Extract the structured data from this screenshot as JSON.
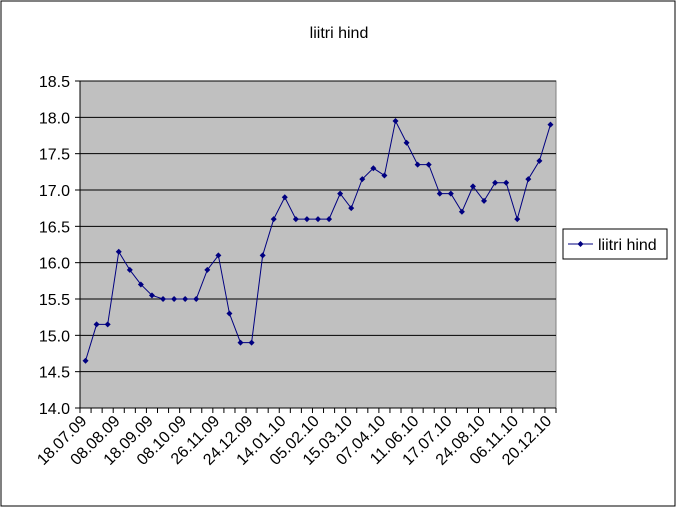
{
  "chart_data": {
    "type": "line",
    "title": "liitri hind",
    "categories": [
      "18.07.09",
      null,
      null,
      "08.08.09",
      null,
      null,
      "18.09.09",
      null,
      null,
      "08.10.09",
      null,
      null,
      "26.11.09",
      null,
      null,
      "24.12.09",
      null,
      null,
      "14.01.10",
      null,
      null,
      "05.02.10",
      null,
      null,
      "15.03.10",
      null,
      null,
      "07.04.10",
      null,
      null,
      "11.06.10",
      null,
      null,
      "17.07.10",
      null,
      null,
      "24.08.10",
      null,
      null,
      "06.11.10",
      null,
      null,
      "20.12.10"
    ],
    "series": [
      {
        "name": "liitri hind",
        "color": "#000080",
        "values": [
          14.65,
          15.15,
          15.15,
          16.15,
          15.9,
          15.7,
          15.55,
          15.5,
          15.5,
          15.5,
          15.5,
          15.9,
          16.1,
          15.3,
          14.9,
          14.9,
          16.1,
          16.6,
          16.9,
          16.6,
          16.6,
          16.6,
          16.6,
          16.95,
          16.75,
          17.15,
          17.3,
          17.2,
          17.95,
          17.65,
          17.35,
          17.35,
          16.95,
          16.95,
          16.7,
          17.05,
          16.85,
          17.1,
          17.1,
          16.6,
          17.15,
          17.4,
          17.9
        ]
      }
    ],
    "ylim": [
      14,
      18.5
    ],
    "yticks": [
      {
        "value": 14,
        "label": "14.0"
      },
      14.5,
      {
        "value": 15,
        "label": "15.0"
      },
      15.5,
      {
        "value": 16,
        "label": "16.0"
      },
      16.5,
      {
        "value": 17,
        "label": "17.0"
      },
      17.5,
      {
        "value": 18,
        "label": "18.0"
      },
      18.5
    ],
    "grid": true,
    "plot_background": "#c0c0c0",
    "legend": "right"
  }
}
